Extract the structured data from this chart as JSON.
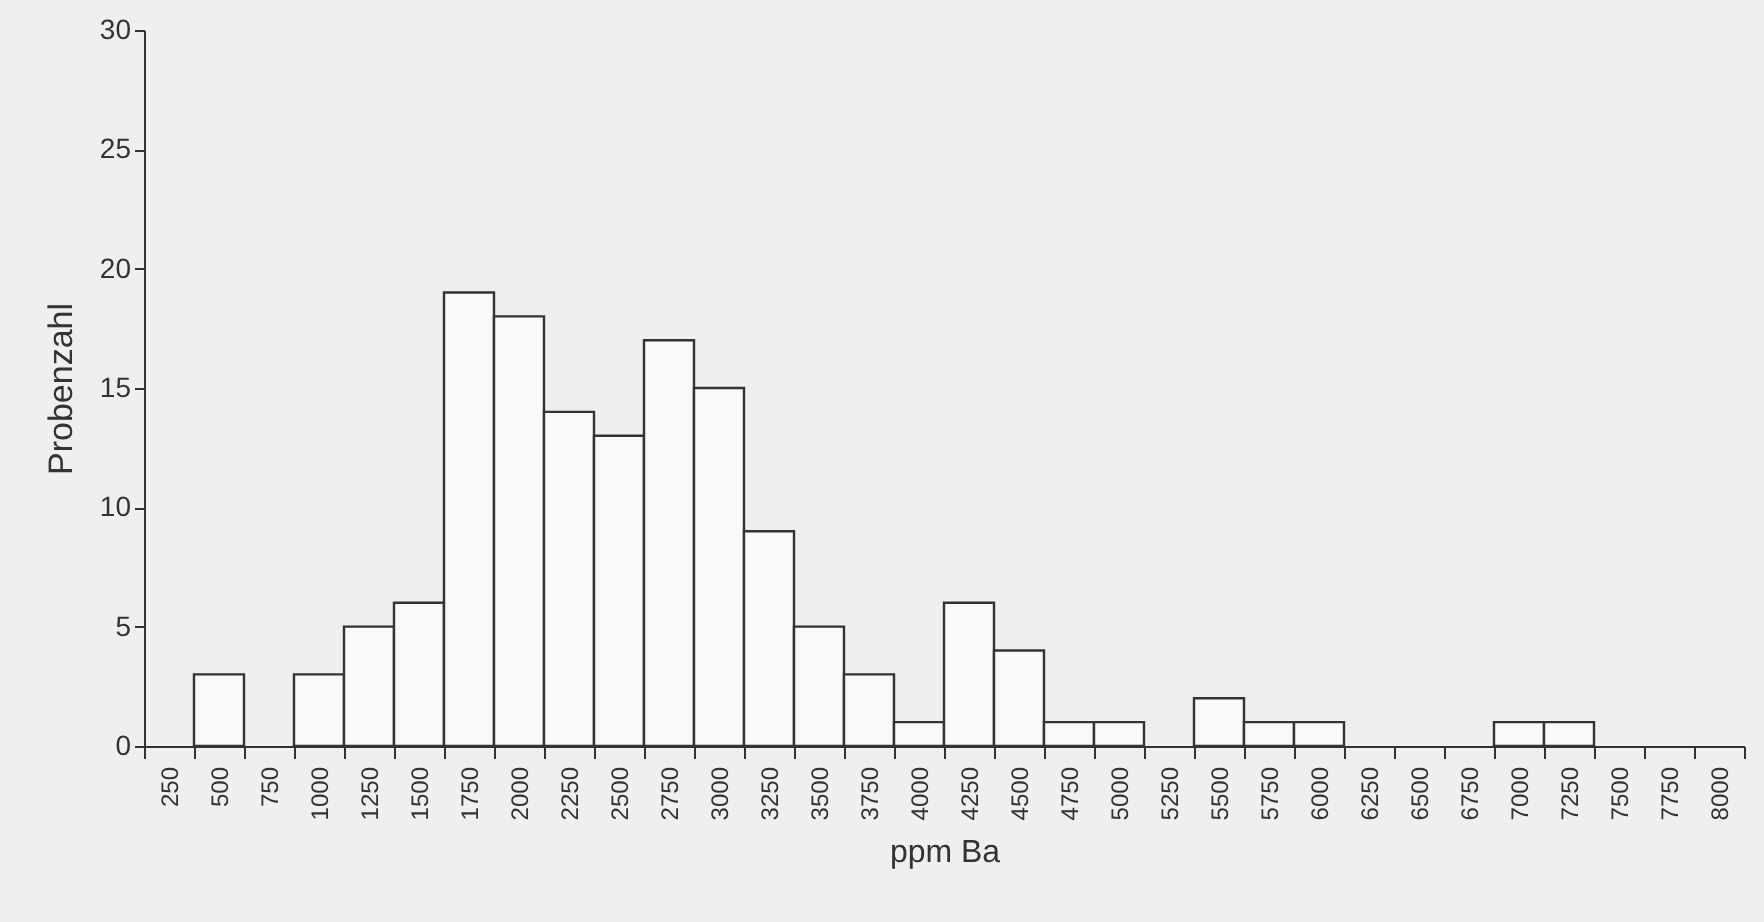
{
  "chart_data": {
    "type": "bar",
    "xlabel": "ppm Ba",
    "ylabel": "Probenzahl",
    "categories": [
      "250",
      "500",
      "750",
      "1000",
      "1250",
      "1500",
      "1750",
      "2000",
      "2250",
      "2500",
      "2750",
      "3000",
      "3250",
      "3500",
      "3750",
      "4000",
      "4250",
      "4500",
      "4750",
      "5000",
      "5250",
      "5500",
      "5750",
      "6000",
      "6250",
      "6500",
      "6750",
      "7000",
      "7250",
      "7500",
      "7750",
      "8000"
    ],
    "values": [
      0,
      3,
      0,
      3,
      5,
      6,
      19,
      18,
      14,
      13,
      17,
      15,
      9,
      5,
      3,
      1,
      6,
      4,
      1,
      1,
      0,
      2,
      1,
      1,
      0,
      0,
      0,
      1,
      1,
      0,
      0,
      0
    ],
    "color": "#f9f9f7",
    "ylim": [
      0,
      30
    ],
    "yticks": [
      0,
      5,
      10,
      15,
      20,
      25,
      30
    ],
    "grid": false
  }
}
